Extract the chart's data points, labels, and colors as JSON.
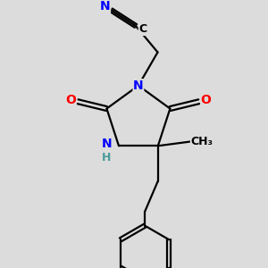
{
  "background_color": "#dcdcdc",
  "bond_color": "#000000",
  "N_color": "#0000ff",
  "O_color": "#ff0000",
  "C_color": "#000000",
  "H_color": "#4a9a9a",
  "figsize": [
    3.0,
    3.0
  ],
  "dpi": 100,
  "xlim": [
    0,
    300
  ],
  "ylim": [
    0,
    300
  ]
}
